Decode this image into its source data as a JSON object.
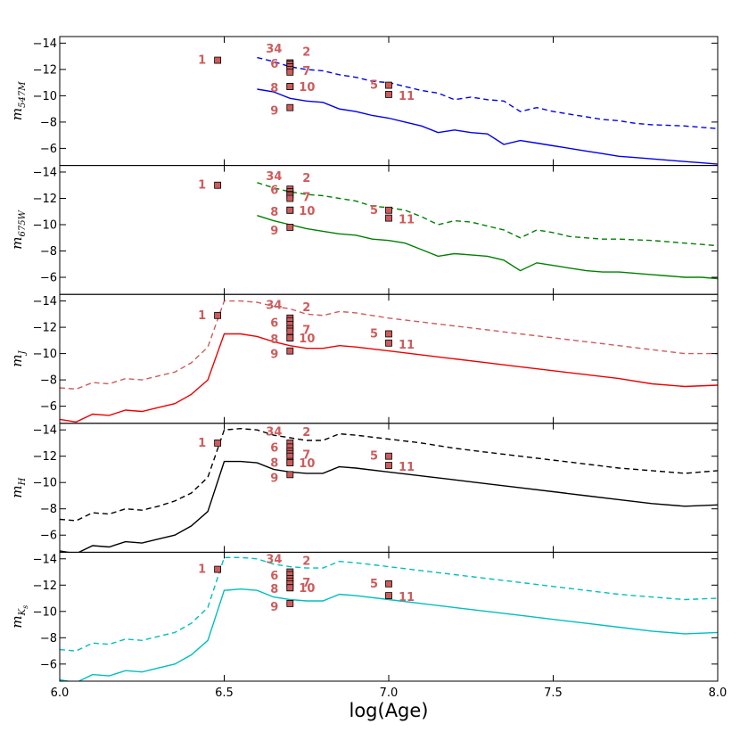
{
  "chart_data": [
    {
      "type": "line",
      "ylabel": "m",
      "ylabel_sub": "547M",
      "xlabel": "",
      "xlim": [
        6.0,
        8.0
      ],
      "ylim": [
        -4.7,
        -14.5
      ],
      "yticks": [
        -14,
        -12,
        -10,
        -8,
        -6
      ],
      "ytick_labels": [
        "−14",
        "−12",
        "−10",
        "−8",
        "−6"
      ],
      "series": [
        {
          "name": "dashed",
          "style": "dashed",
          "color": "#0000ee",
          "x": [
            6.6,
            6.65,
            6.7,
            6.75,
            6.8,
            6.85,
            6.9,
            6.95,
            7.0,
            7.05,
            7.1,
            7.15,
            7.2,
            7.25,
            7.3,
            7.35,
            7.4,
            7.45,
            7.5,
            7.55,
            7.6,
            7.65,
            7.7,
            7.75,
            7.8,
            7.85,
            7.9,
            7.95,
            8.0
          ],
          "y": [
            -12.9,
            -12.6,
            -12.2,
            -12.0,
            -11.9,
            -11.6,
            -11.4,
            -11.1,
            -11.0,
            -10.7,
            -10.4,
            -10.2,
            -9.7,
            -9.9,
            -9.7,
            -9.6,
            -8.8,
            -9.1,
            -8.8,
            -8.6,
            -8.4,
            -8.2,
            -8.1,
            -7.9,
            -7.8,
            -7.75,
            -7.7,
            -7.6,
            -7.5
          ]
        },
        {
          "name": "solid",
          "style": "solid",
          "color": "#0000ee",
          "x": [
            6.6,
            6.65,
            6.7,
            6.75,
            6.8,
            6.85,
            6.9,
            6.95,
            7.0,
            7.05,
            7.1,
            7.15,
            7.2,
            7.25,
            7.3,
            7.35,
            7.4,
            7.45,
            7.5,
            7.55,
            7.6,
            7.65,
            7.7,
            7.75,
            7.8,
            7.85,
            7.9,
            7.95,
            8.0
          ],
          "y": [
            -10.5,
            -10.3,
            -9.8,
            -9.6,
            -9.5,
            -9.0,
            -8.8,
            -8.5,
            -8.3,
            -8.0,
            -7.7,
            -7.2,
            -7.4,
            -7.2,
            -7.1,
            -6.3,
            -6.6,
            -6.4,
            -6.2,
            -6.0,
            -5.8,
            -5.6,
            -5.4,
            -5.3,
            -5.2,
            -5.1,
            -5.0,
            -4.9,
            -4.8
          ]
        }
      ],
      "points": [
        {
          "label": "1",
          "x": 6.48,
          "y": -12.7
        },
        {
          "label": "2",
          "x": 6.7,
          "y": -12.5
        },
        {
          "label": "3",
          "x": 6.7,
          "y": -12.4
        },
        {
          "label": "4",
          "x": 6.7,
          "y": -12.2
        },
        {
          "label": "6",
          "x": 6.7,
          "y": -12.0
        },
        {
          "label": "7",
          "x": 6.7,
          "y": -11.8
        },
        {
          "label": "8",
          "x": 6.7,
          "y": -10.7
        },
        {
          "label": "10",
          "x": 6.7,
          "y": -10.7
        },
        {
          "label": "9",
          "x": 6.7,
          "y": -9.1
        },
        {
          "label": "5",
          "x": 7.0,
          "y": -10.8
        },
        {
          "label": "11",
          "x": 7.0,
          "y": -10.1
        }
      ]
    },
    {
      "type": "line",
      "ylabel": "m",
      "ylabel_sub": "675W",
      "xlabel": "",
      "xlim": [
        6.0,
        8.0
      ],
      "ylim": [
        -4.7,
        -14.5
      ],
      "yticks": [
        -14,
        -12,
        -10,
        -8,
        -6
      ],
      "ytick_labels": [
        "−14",
        "−12",
        "−10",
        "−8",
        "−6"
      ],
      "series": [
        {
          "name": "dashed",
          "style": "dashed",
          "color": "#008000",
          "x": [
            6.6,
            6.65,
            6.7,
            6.75,
            6.8,
            6.85,
            6.9,
            6.95,
            7.0,
            7.05,
            7.1,
            7.15,
            7.2,
            7.25,
            7.3,
            7.35,
            7.4,
            7.45,
            7.5,
            7.55,
            7.6,
            7.65,
            7.7,
            7.75,
            7.8,
            7.85,
            7.9,
            7.95,
            8.0
          ],
          "y": [
            -13.2,
            -12.8,
            -12.5,
            -12.3,
            -12.2,
            -12.0,
            -11.8,
            -11.4,
            -11.3,
            -11.1,
            -10.6,
            -10.0,
            -10.3,
            -10.2,
            -9.9,
            -9.6,
            -9.0,
            -9.6,
            -9.4,
            -9.1,
            -9.0,
            -8.9,
            -8.9,
            -8.85,
            -8.8,
            -8.7,
            -8.6,
            -8.5,
            -8.4
          ]
        },
        {
          "name": "solid",
          "style": "solid",
          "color": "#008000",
          "x": [
            6.6,
            6.65,
            6.7,
            6.75,
            6.8,
            6.85,
            6.9,
            6.95,
            7.0,
            7.05,
            7.1,
            7.15,
            7.2,
            7.25,
            7.3,
            7.35,
            7.4,
            7.45,
            7.5,
            7.55,
            7.6,
            7.65,
            7.7,
            7.75,
            7.8,
            7.85,
            7.9,
            7.95,
            8.0
          ],
          "y": [
            -10.7,
            -10.3,
            -10.0,
            -9.7,
            -9.5,
            -9.3,
            -9.2,
            -8.9,
            -8.8,
            -8.6,
            -8.1,
            -7.6,
            -7.8,
            -7.7,
            -7.6,
            -7.3,
            -6.5,
            -7.1,
            -6.9,
            -6.7,
            -6.5,
            -6.4,
            -6.4,
            -6.3,
            -6.2,
            -6.1,
            -6.0,
            -6.0,
            -5.9
          ]
        }
      ],
      "points": [
        {
          "label": "1",
          "x": 6.48,
          "y": -13.0
        },
        {
          "label": "2",
          "x": 6.7,
          "y": -12.7
        },
        {
          "label": "3",
          "x": 6.7,
          "y": -12.5
        },
        {
          "label": "4",
          "x": 6.7,
          "y": -12.3
        },
        {
          "label": "6",
          "x": 6.7,
          "y": -12.2
        },
        {
          "label": "7",
          "x": 6.7,
          "y": -12.0
        },
        {
          "label": "8",
          "x": 6.7,
          "y": -11.1
        },
        {
          "label": "10",
          "x": 6.7,
          "y": -11.1
        },
        {
          "label": "9",
          "x": 6.7,
          "y": -9.8
        },
        {
          "label": "5",
          "x": 7.0,
          "y": -11.1
        },
        {
          "label": "11",
          "x": 7.0,
          "y": -10.5
        }
      ]
    },
    {
      "type": "line",
      "ylabel": "m",
      "ylabel_sub": "J",
      "xlabel": "",
      "xlim": [
        6.0,
        8.0
      ],
      "ylim": [
        -4.7,
        -14.5
      ],
      "yticks": [
        -14,
        -12,
        -10,
        -8,
        -6
      ],
      "ytick_labels": [
        "−14",
        "−12",
        "−10",
        "−8",
        "−6"
      ],
      "series": [
        {
          "name": "dashed",
          "style": "dashed",
          "color": "#cd5c5c",
          "x": [
            6.0,
            6.05,
            6.1,
            6.15,
            6.2,
            6.25,
            6.3,
            6.35,
            6.4,
            6.45,
            6.5,
            6.55,
            6.6,
            6.65,
            6.7,
            6.75,
            6.8,
            6.85,
            6.9,
            7.0,
            7.1,
            7.2,
            7.3,
            7.4,
            7.5,
            7.6,
            7.7,
            7.8,
            7.9,
            8.0
          ],
          "y": [
            -7.4,
            -7.3,
            -7.8,
            -7.7,
            -8.1,
            -8.0,
            -8.3,
            -8.6,
            -9.3,
            -10.5,
            -14.0,
            -14.0,
            -13.9,
            -13.6,
            -13.4,
            -13.0,
            -12.9,
            -13.2,
            -13.1,
            -12.7,
            -12.4,
            -12.1,
            -11.8,
            -11.5,
            -11.2,
            -10.9,
            -10.6,
            -10.3,
            -10.0,
            -10.0
          ]
        },
        {
          "name": "solid",
          "style": "solid",
          "color": "#ee0000",
          "x": [
            6.0,
            6.05,
            6.1,
            6.15,
            6.2,
            6.25,
            6.3,
            6.35,
            6.4,
            6.45,
            6.5,
            6.55,
            6.6,
            6.65,
            6.7,
            6.75,
            6.8,
            6.85,
            6.9,
            7.0,
            7.1,
            7.2,
            7.3,
            7.4,
            7.5,
            7.6,
            7.7,
            7.8,
            7.9,
            8.0
          ],
          "y": [
            -5.0,
            -4.8,
            -5.4,
            -5.3,
            -5.7,
            -5.6,
            -5.9,
            -6.2,
            -6.9,
            -8.0,
            -11.5,
            -11.5,
            -11.3,
            -10.9,
            -10.6,
            -10.4,
            -10.4,
            -10.6,
            -10.5,
            -10.2,
            -9.9,
            -9.6,
            -9.3,
            -9.0,
            -8.7,
            -8.4,
            -8.1,
            -7.7,
            -7.5,
            -7.6
          ]
        }
      ],
      "points": [
        {
          "label": "1",
          "x": 6.48,
          "y": -12.9
        },
        {
          "label": "2",
          "x": 6.7,
          "y": -12.7
        },
        {
          "label": "3",
          "x": 6.7,
          "y": -12.5
        },
        {
          "label": "4",
          "x": 6.7,
          "y": -12.2
        },
        {
          "label": "6",
          "x": 6.7,
          "y": -11.9
        },
        {
          "label": "7",
          "x": 6.7,
          "y": -11.7
        },
        {
          "label": "8",
          "x": 6.7,
          "y": -11.2
        },
        {
          "label": "10",
          "x": 6.7,
          "y": -11.2
        },
        {
          "label": "9",
          "x": 6.7,
          "y": -10.2
        },
        {
          "label": "5",
          "x": 7.0,
          "y": -11.5
        },
        {
          "label": "11",
          "x": 7.0,
          "y": -10.8
        }
      ]
    },
    {
      "type": "line",
      "ylabel": "m",
      "ylabel_sub": "H",
      "xlabel": "",
      "xlim": [
        6.0,
        8.0
      ],
      "ylim": [
        -4.7,
        -14.5
      ],
      "yticks": [
        -14,
        -12,
        -10,
        -8,
        -6
      ],
      "ytick_labels": [
        "−14",
        "−12",
        "−10",
        "−8",
        "−6"
      ],
      "series": [
        {
          "name": "dashed",
          "style": "dashed",
          "color": "#000000",
          "x": [
            6.0,
            6.05,
            6.1,
            6.15,
            6.2,
            6.25,
            6.3,
            6.35,
            6.4,
            6.45,
            6.5,
            6.55,
            6.6,
            6.65,
            6.7,
            6.75,
            6.8,
            6.85,
            6.9,
            7.0,
            7.1,
            7.2,
            7.3,
            7.4,
            7.5,
            7.6,
            7.7,
            7.8,
            7.9,
            8.0
          ],
          "y": [
            -7.2,
            -7.1,
            -7.7,
            -7.6,
            -8.0,
            -7.9,
            -8.2,
            -8.6,
            -9.2,
            -10.4,
            -14.0,
            -14.1,
            -14.0,
            -13.6,
            -13.4,
            -13.2,
            -13.2,
            -13.7,
            -13.6,
            -13.3,
            -13.0,
            -12.6,
            -12.3,
            -12.0,
            -11.7,
            -11.4,
            -11.1,
            -10.9,
            -10.7,
            -10.9
          ]
        },
        {
          "name": "solid",
          "style": "solid",
          "color": "#000000",
          "x": [
            6.0,
            6.05,
            6.1,
            6.15,
            6.2,
            6.25,
            6.3,
            6.35,
            6.4,
            6.45,
            6.5,
            6.55,
            6.6,
            6.65,
            6.7,
            6.75,
            6.8,
            6.85,
            6.9,
            7.0,
            7.1,
            7.2,
            7.3,
            7.4,
            7.5,
            7.6,
            7.7,
            7.8,
            7.9,
            8.0
          ],
          "y": [
            -4.8,
            -4.6,
            -5.2,
            -5.1,
            -5.5,
            -5.4,
            -5.7,
            -6.0,
            -6.7,
            -7.8,
            -11.6,
            -11.6,
            -11.5,
            -11.0,
            -10.8,
            -10.7,
            -10.7,
            -11.2,
            -11.1,
            -10.8,
            -10.5,
            -10.2,
            -9.9,
            -9.6,
            -9.3,
            -9.0,
            -8.7,
            -8.4,
            -8.2,
            -8.3
          ]
        }
      ],
      "points": [
        {
          "label": "1",
          "x": 6.48,
          "y": -13.0
        },
        {
          "label": "2",
          "x": 6.7,
          "y": -13.0
        },
        {
          "label": "3",
          "x": 6.7,
          "y": -12.7
        },
        {
          "label": "4",
          "x": 6.7,
          "y": -12.4
        },
        {
          "label": "6",
          "x": 6.7,
          "y": -12.2
        },
        {
          "label": "7",
          "x": 6.7,
          "y": -12.0
        },
        {
          "label": "8",
          "x": 6.7,
          "y": -11.6
        },
        {
          "label": "10",
          "x": 6.7,
          "y": -11.5
        },
        {
          "label": "9",
          "x": 6.7,
          "y": -10.6
        },
        {
          "label": "5",
          "x": 7.0,
          "y": -12.0
        },
        {
          "label": "11",
          "x": 7.0,
          "y": -11.3
        }
      ]
    },
    {
      "type": "line",
      "ylabel": "m",
      "ylabel_sub": "K",
      "ylabel_subsub": "s",
      "xlabel": "log(Age)",
      "xlim": [
        6.0,
        8.0
      ],
      "ylim": [
        -4.7,
        -14.5
      ],
      "yticks": [
        -14,
        -12,
        -10,
        -8,
        -6
      ],
      "ytick_labels": [
        "−14",
        "−12",
        "−10",
        "−8",
        "−6"
      ],
      "xticks": [
        6.0,
        6.5,
        7.0,
        7.5,
        8.0
      ],
      "xtick_labels": [
        "6.0",
        "6.5",
        "7.0",
        "7.5",
        "8.0"
      ],
      "series": [
        {
          "name": "dashed",
          "style": "dashed",
          "color": "#00bfbf",
          "x": [
            6.0,
            6.05,
            6.1,
            6.15,
            6.2,
            6.25,
            6.3,
            6.35,
            6.4,
            6.45,
            6.5,
            6.55,
            6.6,
            6.65,
            6.7,
            6.75,
            6.8,
            6.85,
            6.9,
            7.0,
            7.1,
            7.2,
            7.3,
            7.4,
            7.5,
            7.6,
            7.7,
            7.8,
            7.9,
            8.0
          ],
          "y": [
            -7.1,
            -7.0,
            -7.6,
            -7.5,
            -7.9,
            -7.8,
            -8.1,
            -8.4,
            -9.1,
            -10.3,
            -14.1,
            -14.1,
            -14.0,
            -13.6,
            -13.4,
            -13.3,
            -13.3,
            -13.8,
            -13.7,
            -13.4,
            -13.1,
            -12.8,
            -12.5,
            -12.2,
            -11.9,
            -11.6,
            -11.3,
            -11.1,
            -10.9,
            -11.0
          ]
        },
        {
          "name": "solid",
          "style": "solid",
          "color": "#00bfbf",
          "x": [
            6.0,
            6.05,
            6.1,
            6.15,
            6.2,
            6.25,
            6.3,
            6.35,
            6.4,
            6.45,
            6.5,
            6.55,
            6.6,
            6.65,
            6.7,
            6.75,
            6.8,
            6.85,
            6.9,
            7.0,
            7.1,
            7.2,
            7.3,
            7.4,
            7.5,
            7.6,
            7.7,
            7.8,
            7.9,
            8.0
          ],
          "y": [
            -4.8,
            -4.6,
            -5.2,
            -5.1,
            -5.5,
            -5.4,
            -5.7,
            -6.0,
            -6.7,
            -7.8,
            -11.6,
            -11.7,
            -11.6,
            -11.1,
            -10.9,
            -10.8,
            -10.8,
            -11.3,
            -11.2,
            -10.9,
            -10.6,
            -10.3,
            -10.0,
            -9.7,
            -9.4,
            -9.1,
            -8.8,
            -8.5,
            -8.3,
            -8.4
          ]
        }
      ],
      "points": [
        {
          "label": "1",
          "x": 6.48,
          "y": -13.2
        },
        {
          "label": "2",
          "x": 6.7,
          "y": -13.0
        },
        {
          "label": "3",
          "x": 6.7,
          "y": -12.8
        },
        {
          "label": "4",
          "x": 6.7,
          "y": -12.5
        },
        {
          "label": "6",
          "x": 6.7,
          "y": -12.3
        },
        {
          "label": "7",
          "x": 6.7,
          "y": -12.1
        },
        {
          "label": "8",
          "x": 6.7,
          "y": -11.8
        },
        {
          "label": "10",
          "x": 6.7,
          "y": -11.8
        },
        {
          "label": "9",
          "x": 6.7,
          "y": -10.6
        },
        {
          "label": "5",
          "x": 7.0,
          "y": -12.1
        },
        {
          "label": "11",
          "x": 7.0,
          "y": -11.2
        }
      ]
    }
  ],
  "star_label_text": {
    "row1": [
      "1",
      "34",
      "2"
    ],
    "row2": [
      "6",
      "7"
    ],
    "row3": [
      "8",
      "10",
      "5"
    ],
    "row4": [
      "9",
      "11"
    ]
  },
  "colors": {
    "marker_fill": "#cd5c5c",
    "marker_edge": "#000000",
    "label": "#cd5c5c"
  }
}
